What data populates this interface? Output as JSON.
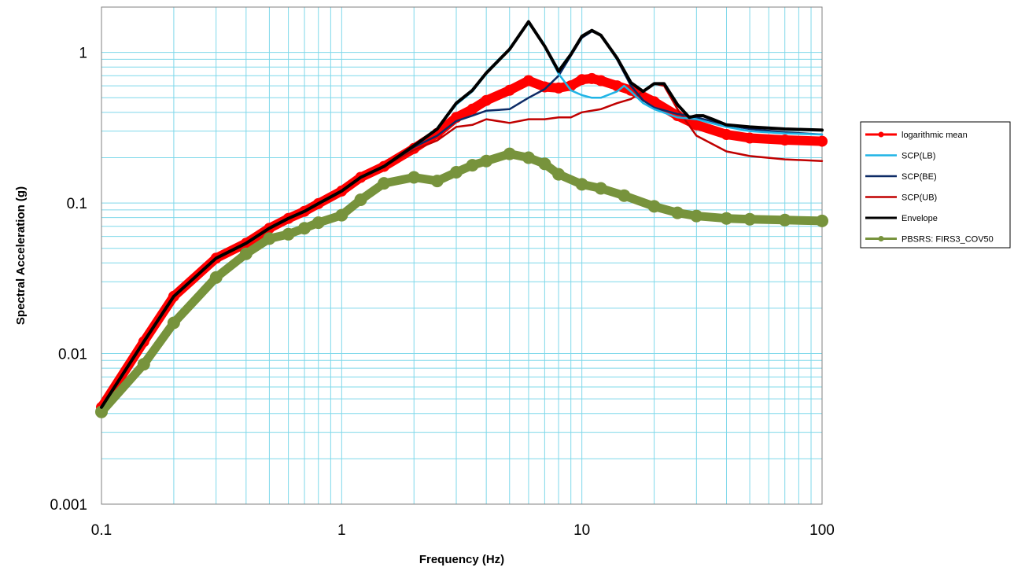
{
  "chart_data": {
    "type": "line",
    "title": "",
    "xlabel": "Frequency (Hz)",
    "ylabel": "Spectral Acceleration (g)",
    "xscale": "log",
    "yscale": "log",
    "xlim": [
      0.1,
      100
    ],
    "ylim": [
      0.001,
      2
    ],
    "grid": true,
    "legend_position": "right",
    "x_tick_labels": [
      "0.1",
      "1",
      "10",
      "100"
    ],
    "y_tick_labels": [
      "0.001",
      "0.01",
      "0.1",
      "1"
    ],
    "series": [
      {
        "name": "logarithmic mean",
        "color": "#ff0000",
        "marker": "circle",
        "points": [
          [
            0.1,
            0.0044
          ],
          [
            0.15,
            0.012
          ],
          [
            0.2,
            0.024
          ],
          [
            0.3,
            0.043
          ],
          [
            0.4,
            0.054
          ],
          [
            0.5,
            0.068
          ],
          [
            0.6,
            0.079
          ],
          [
            0.7,
            0.088
          ],
          [
            0.8,
            0.099
          ],
          [
            1,
            0.12
          ],
          [
            1.2,
            0.148
          ],
          [
            1.5,
            0.175
          ],
          [
            2,
            0.23
          ],
          [
            2.5,
            0.29
          ],
          [
            3,
            0.37
          ],
          [
            3.5,
            0.42
          ],
          [
            4,
            0.48
          ],
          [
            5,
            0.56
          ],
          [
            6,
            0.65
          ],
          [
            7,
            0.59
          ],
          [
            8,
            0.58
          ],
          [
            9,
            0.6
          ],
          [
            10,
            0.66
          ],
          [
            11,
            0.67
          ],
          [
            12,
            0.65
          ],
          [
            14,
            0.6
          ],
          [
            16,
            0.56
          ],
          [
            20,
            0.47
          ],
          [
            25,
            0.38
          ],
          [
            30,
            0.33
          ],
          [
            40,
            0.285
          ],
          [
            50,
            0.27
          ],
          [
            70,
            0.262
          ],
          [
            100,
            0.257
          ]
        ]
      },
      {
        "name": "SCP(LB)",
        "color": "#1fb4e6",
        "marker": "none",
        "points": [
          [
            0.1,
            0.0044
          ],
          [
            0.15,
            0.012
          ],
          [
            0.2,
            0.024
          ],
          [
            0.3,
            0.043
          ],
          [
            0.4,
            0.054
          ],
          [
            0.5,
            0.068
          ],
          [
            0.6,
            0.079
          ],
          [
            0.7,
            0.088
          ],
          [
            0.8,
            0.099
          ],
          [
            1,
            0.12
          ],
          [
            1.2,
            0.148
          ],
          [
            1.5,
            0.175
          ],
          [
            2,
            0.24
          ],
          [
            2.5,
            0.31
          ],
          [
            3,
            0.45
          ],
          [
            3.5,
            0.55
          ],
          [
            4,
            0.72
          ],
          [
            5,
            1.05
          ],
          [
            6,
            1.6
          ],
          [
            7,
            1.1
          ],
          [
            8,
            0.72
          ],
          [
            9,
            0.56
          ],
          [
            10,
            0.52
          ],
          [
            11,
            0.5
          ],
          [
            12,
            0.5
          ],
          [
            14,
            0.55
          ],
          [
            15,
            0.6
          ],
          [
            16,
            0.55
          ],
          [
            18,
            0.46
          ],
          [
            20,
            0.42
          ],
          [
            25,
            0.37
          ],
          [
            30,
            0.36
          ],
          [
            40,
            0.32
          ],
          [
            50,
            0.3
          ],
          [
            70,
            0.29
          ],
          [
            100,
            0.285
          ]
        ]
      },
      {
        "name": "SCP(BE)",
        "color": "#0d2b66",
        "marker": "none",
        "points": [
          [
            0.1,
            0.0044
          ],
          [
            0.15,
            0.012
          ],
          [
            0.2,
            0.024
          ],
          [
            0.3,
            0.043
          ],
          [
            0.4,
            0.054
          ],
          [
            0.5,
            0.068
          ],
          [
            0.6,
            0.079
          ],
          [
            0.7,
            0.088
          ],
          [
            0.8,
            0.099
          ],
          [
            1,
            0.12
          ],
          [
            1.2,
            0.148
          ],
          [
            1.5,
            0.175
          ],
          [
            2,
            0.235
          ],
          [
            2.5,
            0.28
          ],
          [
            3,
            0.35
          ],
          [
            3.5,
            0.38
          ],
          [
            4,
            0.41
          ],
          [
            5,
            0.42
          ],
          [
            6,
            0.5
          ],
          [
            7,
            0.57
          ],
          [
            8,
            0.7
          ],
          [
            9,
            0.95
          ],
          [
            10,
            1.25
          ],
          [
            11,
            1.38
          ],
          [
            12,
            1.3
          ],
          [
            14,
            0.9
          ],
          [
            16,
            0.6
          ],
          [
            18,
            0.48
          ],
          [
            20,
            0.43
          ],
          [
            25,
            0.39
          ],
          [
            30,
            0.37
          ],
          [
            40,
            0.33
          ],
          [
            50,
            0.31
          ],
          [
            70,
            0.295
          ],
          [
            100,
            0.285
          ]
        ]
      },
      {
        "name": "SCP(UB)",
        "color": "#c00000",
        "marker": "none",
        "points": [
          [
            0.1,
            0.0044
          ],
          [
            0.15,
            0.012
          ],
          [
            0.2,
            0.024
          ],
          [
            0.3,
            0.043
          ],
          [
            0.4,
            0.054
          ],
          [
            0.5,
            0.068
          ],
          [
            0.6,
            0.079
          ],
          [
            0.7,
            0.088
          ],
          [
            0.8,
            0.099
          ],
          [
            1,
            0.12
          ],
          [
            1.2,
            0.148
          ],
          [
            1.5,
            0.175
          ],
          [
            2,
            0.225
          ],
          [
            2.5,
            0.26
          ],
          [
            3,
            0.32
          ],
          [
            3.5,
            0.33
          ],
          [
            4,
            0.36
          ],
          [
            5,
            0.34
          ],
          [
            6,
            0.36
          ],
          [
            7,
            0.36
          ],
          [
            8,
            0.37
          ],
          [
            9,
            0.37
          ],
          [
            10,
            0.4
          ],
          [
            12,
            0.42
          ],
          [
            14,
            0.46
          ],
          [
            16,
            0.49
          ],
          [
            18,
            0.55
          ],
          [
            20,
            0.62
          ],
          [
            22,
            0.6
          ],
          [
            25,
            0.42
          ],
          [
            30,
            0.28
          ],
          [
            40,
            0.22
          ],
          [
            50,
            0.205
          ],
          [
            70,
            0.195
          ],
          [
            100,
            0.19
          ]
        ]
      },
      {
        "name": "Envelope",
        "color": "#000000",
        "marker": "none",
        "points": [
          [
            0.1,
            0.0044
          ],
          [
            0.15,
            0.012
          ],
          [
            0.2,
            0.024
          ],
          [
            0.3,
            0.043
          ],
          [
            0.4,
            0.054
          ],
          [
            0.5,
            0.068
          ],
          [
            0.6,
            0.079
          ],
          [
            0.7,
            0.088
          ],
          [
            0.8,
            0.099
          ],
          [
            1,
            0.12
          ],
          [
            1.2,
            0.148
          ],
          [
            1.5,
            0.175
          ],
          [
            2,
            0.24
          ],
          [
            2.5,
            0.31
          ],
          [
            3,
            0.46
          ],
          [
            3.5,
            0.56
          ],
          [
            4,
            0.73
          ],
          [
            5,
            1.05
          ],
          [
            6,
            1.6
          ],
          [
            7,
            1.1
          ],
          [
            8,
            0.75
          ],
          [
            9,
            0.97
          ],
          [
            10,
            1.28
          ],
          [
            11,
            1.4
          ],
          [
            12,
            1.3
          ],
          [
            14,
            0.92
          ],
          [
            16,
            0.63
          ],
          [
            18,
            0.55
          ],
          [
            20,
            0.62
          ],
          [
            22,
            0.62
          ],
          [
            25,
            0.45
          ],
          [
            28,
            0.37
          ],
          [
            30,
            0.38
          ],
          [
            32,
            0.38
          ],
          [
            35,
            0.36
          ],
          [
            40,
            0.33
          ],
          [
            50,
            0.32
          ],
          [
            70,
            0.31
          ],
          [
            100,
            0.305
          ]
        ]
      },
      {
        "name": "PBSRS: FIRS3_COV50",
        "color": "#77933c",
        "marker": "circle",
        "points": [
          [
            0.1,
            0.0041
          ],
          [
            0.15,
            0.0085
          ],
          [
            0.2,
            0.016
          ],
          [
            0.3,
            0.032
          ],
          [
            0.4,
            0.046
          ],
          [
            0.5,
            0.058
          ],
          [
            0.6,
            0.062
          ],
          [
            0.7,
            0.068
          ],
          [
            0.8,
            0.074
          ],
          [
            1,
            0.083
          ],
          [
            1.2,
            0.105
          ],
          [
            1.5,
            0.135
          ],
          [
            2,
            0.148
          ],
          [
            2.5,
            0.14
          ],
          [
            3,
            0.16
          ],
          [
            3.5,
            0.178
          ],
          [
            4,
            0.19
          ],
          [
            5,
            0.212
          ],
          [
            6,
            0.2
          ],
          [
            7,
            0.182
          ],
          [
            8,
            0.155
          ],
          [
            10,
            0.133
          ],
          [
            12,
            0.125
          ],
          [
            15,
            0.112
          ],
          [
            20,
            0.095
          ],
          [
            25,
            0.086
          ],
          [
            30,
            0.082
          ],
          [
            40,
            0.079
          ],
          [
            50,
            0.078
          ],
          [
            70,
            0.077
          ],
          [
            100,
            0.076
          ]
        ]
      }
    ]
  }
}
